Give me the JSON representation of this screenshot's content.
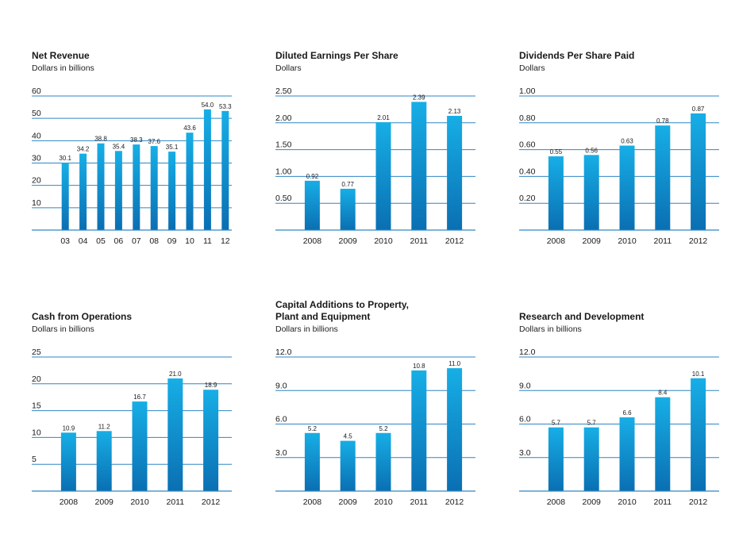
{
  "colors": {
    "bar_top": "#17aee6",
    "bar_bottom": "#0a6fb2",
    "gridline": "#2f86c4",
    "text": "#1a1a1a"
  },
  "chart_data": [
    {
      "type": "bar",
      "title": "Net Revenue",
      "subtitle": "Dollars in billions",
      "categories": [
        "03",
        "04",
        "05",
        "06",
        "07",
        "08",
        "09",
        "10",
        "11",
        "12"
      ],
      "values": [
        30.1,
        34.2,
        38.8,
        35.4,
        38.3,
        37.6,
        35.1,
        43.6,
        54.0,
        53.3
      ],
      "value_labels": [
        "30.1",
        "34.2",
        "38.8",
        "35.4",
        "38.3",
        "37.6",
        "35.1",
        "43.6",
        "54.0",
        "53.3"
      ],
      "yticks": [
        10,
        20,
        30,
        40,
        50,
        60
      ],
      "ytick_labels": [
        "10",
        "20",
        "30",
        "40",
        "50",
        "60"
      ],
      "ylim": [
        0,
        60
      ],
      "grid": true
    },
    {
      "type": "bar",
      "title": "Diluted Earnings Per Share",
      "subtitle": "Dollars",
      "categories": [
        "2008",
        "2009",
        "2010",
        "2011",
        "2012"
      ],
      "values": [
        0.92,
        0.77,
        2.01,
        2.39,
        2.13
      ],
      "value_labels": [
        "0.92",
        "0.77",
        "2.01",
        "2.39",
        "2.13"
      ],
      "yticks": [
        0.5,
        1.0,
        1.5,
        2.0,
        2.5
      ],
      "ytick_labels": [
        "0.50",
        "1.00",
        "1.50",
        "2.00",
        "2.50"
      ],
      "ylim": [
        0,
        2.5
      ],
      "grid": true
    },
    {
      "type": "bar",
      "title": "Dividends Per Share Paid",
      "subtitle": "Dollars",
      "categories": [
        "2008",
        "2009",
        "2010",
        "2011",
        "2012"
      ],
      "values": [
        0.55,
        0.56,
        0.63,
        0.78,
        0.87
      ],
      "value_labels": [
        "0.55",
        "0.56",
        "0.63",
        "0.78",
        "0.87"
      ],
      "yticks": [
        0.2,
        0.4,
        0.6,
        0.8,
        1.0
      ],
      "ytick_labels": [
        "0.20",
        "0.40",
        "0.60",
        "0.80",
        "1.00"
      ],
      "ylim": [
        0,
        1.0
      ],
      "grid": true
    },
    {
      "type": "bar",
      "title": "Cash from Operations",
      "subtitle": "Dollars in billions",
      "categories": [
        "2008",
        "2009",
        "2010",
        "2011",
        "2012"
      ],
      "values": [
        10.9,
        11.2,
        16.7,
        21.0,
        18.9
      ],
      "value_labels": [
        "10.9",
        "11.2",
        "16.7",
        "21.0",
        "18.9"
      ],
      "yticks": [
        5,
        10,
        15,
        20,
        25
      ],
      "ytick_labels": [
        "5",
        "10",
        "15",
        "20",
        "25"
      ],
      "ylim": [
        0,
        25
      ],
      "grid": true
    },
    {
      "type": "bar",
      "title": "Capital Additions to Property,\nPlant and Equipment",
      "subtitle": "Dollars in billions",
      "categories": [
        "2008",
        "2009",
        "2010",
        "2011",
        "2012"
      ],
      "values": [
        5.2,
        4.5,
        5.2,
        10.8,
        11.0
      ],
      "value_labels": [
        "5.2",
        "4.5",
        "5.2",
        "10.8",
        "11.0"
      ],
      "yticks": [
        3.0,
        6.0,
        9.0,
        12.0
      ],
      "ytick_labels": [
        "3.0",
        "6.0",
        "9.0",
        "12.0"
      ],
      "ylim": [
        0,
        12.0
      ],
      "grid": true
    },
    {
      "type": "bar",
      "title": "Research and Development",
      "subtitle": "Dollars in billions",
      "categories": [
        "2008",
        "2009",
        "2010",
        "2011",
        "2012"
      ],
      "values": [
        5.7,
        5.7,
        6.6,
        8.4,
        10.1
      ],
      "value_labels": [
        "5.7",
        "5.7",
        "6.6",
        "8.4",
        "10.1"
      ],
      "yticks": [
        3.0,
        6.0,
        9.0,
        12.0
      ],
      "ytick_labels": [
        "3.0",
        "6.0",
        "9.0",
        "12.0"
      ],
      "ylim": [
        0,
        12.0
      ],
      "grid": true
    }
  ]
}
